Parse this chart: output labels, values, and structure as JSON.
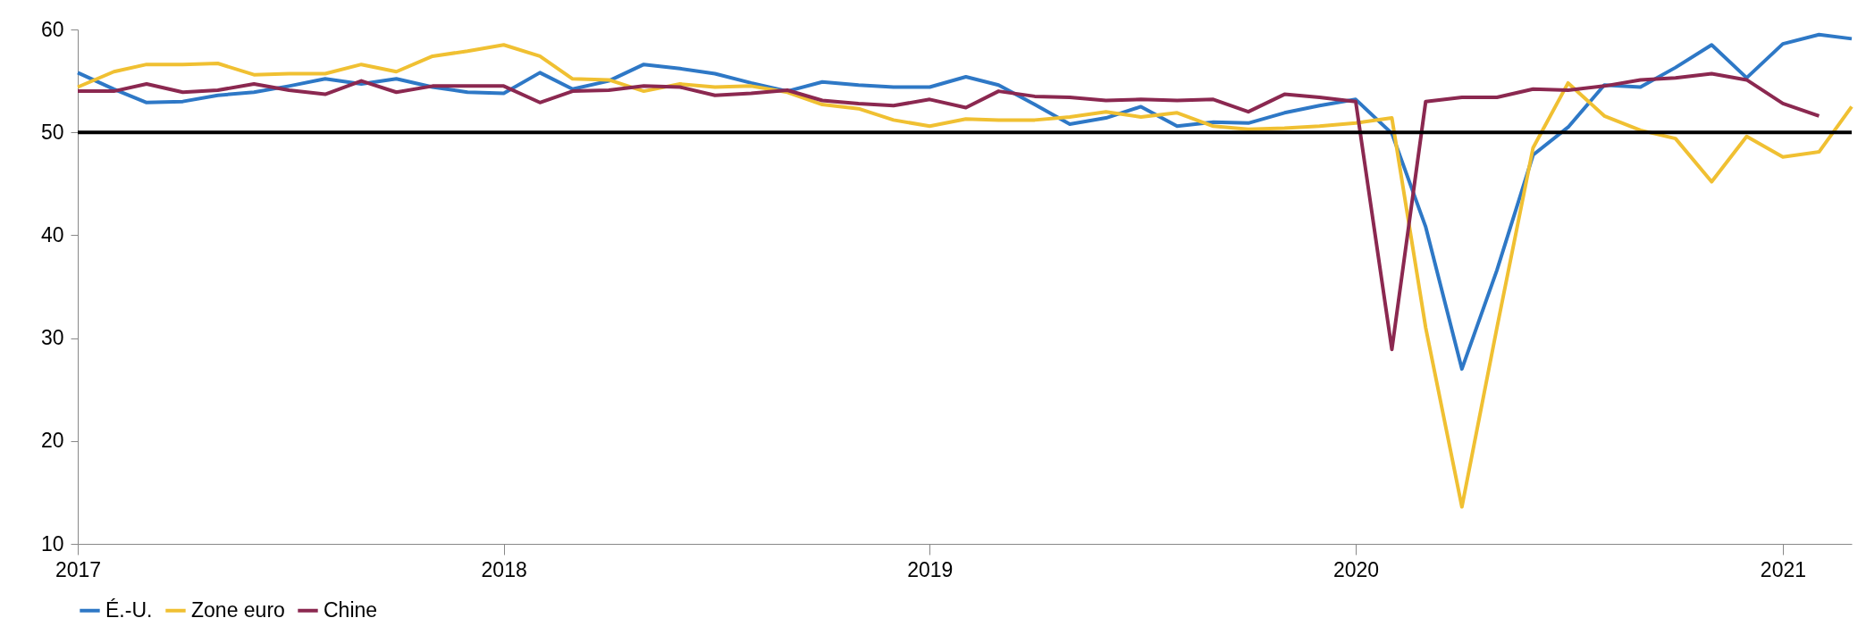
{
  "chart_data": {
    "type": "line",
    "x": [
      "2017-01",
      "2017-02",
      "2017-03",
      "2017-04",
      "2017-05",
      "2017-06",
      "2017-07",
      "2017-08",
      "2017-09",
      "2017-10",
      "2017-11",
      "2017-12",
      "2018-01",
      "2018-02",
      "2018-03",
      "2018-04",
      "2018-05",
      "2018-06",
      "2018-07",
      "2018-08",
      "2018-09",
      "2018-10",
      "2018-11",
      "2018-12",
      "2019-01",
      "2019-02",
      "2019-03",
      "2019-04",
      "2019-05",
      "2019-06",
      "2019-07",
      "2019-08",
      "2019-09",
      "2019-10",
      "2019-11",
      "2019-12",
      "2020-01",
      "2020-02",
      "2020-03",
      "2020-04",
      "2020-05",
      "2020-06",
      "2020-07",
      "2020-08",
      "2020-09",
      "2020-10",
      "2020-11",
      "2020-12",
      "2021-01",
      "2021-02",
      "2021-03"
    ],
    "series": [
      {
        "name": "É.-U.",
        "color": "#2e78c6",
        "values": [
          55.8,
          54.2,
          52.9,
          53.0,
          53.6,
          53.9,
          54.5,
          55.2,
          54.7,
          55.2,
          54.4,
          53.9,
          53.8,
          55.8,
          54.2,
          55.0,
          56.6,
          56.2,
          55.7,
          54.8,
          54.0,
          54.9,
          54.6,
          54.4,
          54.4,
          55.4,
          54.6,
          52.7,
          50.8,
          51.4,
          52.5,
          50.6,
          51.0,
          50.9,
          51.9,
          52.6,
          53.2,
          49.9,
          40.8,
          27.0,
          36.6,
          47.8,
          50.5,
          54.6,
          54.4,
          56.3,
          58.5,
          55.3,
          58.6,
          59.5,
          59.1
        ]
      },
      {
        "name": "Zone euro",
        "color": "#f0c032",
        "values": [
          54.4,
          55.9,
          56.6,
          56.6,
          56.7,
          55.6,
          55.7,
          55.7,
          56.6,
          55.9,
          57.4,
          57.9,
          58.5,
          57.4,
          55.2,
          55.1,
          54.0,
          54.7,
          54.4,
          54.5,
          53.9,
          52.7,
          52.3,
          51.2,
          50.6,
          51.3,
          51.2,
          51.2,
          51.5,
          52.0,
          51.5,
          51.9,
          50.6,
          50.3,
          50.4,
          50.6,
          50.9,
          51.4,
          31.0,
          13.6,
          31.0,
          48.5,
          54.8,
          51.6,
          50.2,
          49.4,
          45.2,
          49.6,
          47.6,
          48.1,
          52.5
        ]
      },
      {
        "name": "Chine",
        "color": "#8b2850",
        "values": [
          54.0,
          54.0,
          54.7,
          53.9,
          54.1,
          54.7,
          54.1,
          53.7,
          55.0,
          53.9,
          54.5,
          54.5,
          54.5,
          52.9,
          54.0,
          54.1,
          54.5,
          54.4,
          53.6,
          53.8,
          54.1,
          53.1,
          52.8,
          52.6,
          53.2,
          52.4,
          54.0,
          53.5,
          53.4,
          53.1,
          53.2,
          53.1,
          53.2,
          52.0,
          53.7,
          53.4,
          53.0,
          28.9,
          53.0,
          53.4,
          53.4,
          54.2,
          54.1,
          54.5,
          55.1,
          55.3,
          55.7,
          55.1,
          52.8,
          51.6,
          null
        ]
      }
    ],
    "xlim": [
      "2017-01",
      "2021-03"
    ],
    "xticks": [
      "2017",
      "2018",
      "2019",
      "2020",
      "2021"
    ],
    "ylim": [
      10,
      60
    ],
    "yticks": [
      10,
      20,
      30,
      40,
      50,
      60
    ],
    "ref_lines": [
      {
        "axis": "y",
        "value": 50,
        "color": "#000000"
      }
    ],
    "legend": "bottom",
    "grid": false,
    "marker": "none",
    "line_style": "solid"
  }
}
